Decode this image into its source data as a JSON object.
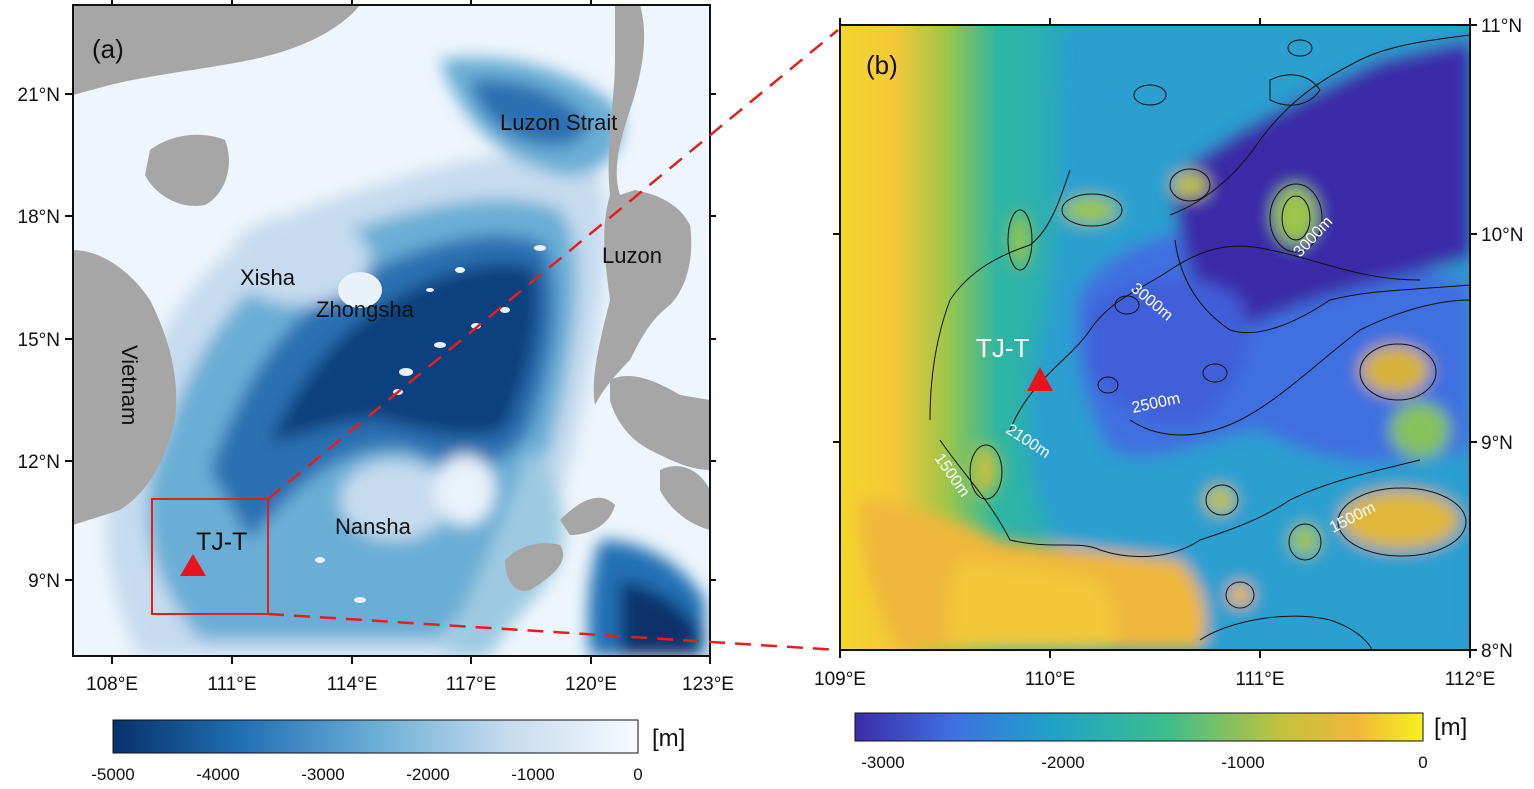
{
  "panel_a": {
    "label": "(a)",
    "lon_ticks": [
      "108°E",
      "111°E",
      "114°E",
      "117°E",
      "120°E",
      "123°E"
    ],
    "lat_ticks": [
      "21°N",
      "18°N",
      "15°N",
      "12°N",
      "9°N"
    ],
    "places": {
      "luzon_strait": "Luzon Strait",
      "luzon": "Luzon",
      "xisha": "Xisha",
      "zhongsha": "Zhongsha",
      "nansha": "Nansha",
      "vietnam": "Vietnam",
      "station": "TJ-T"
    },
    "colorbar": {
      "ticks": [
        "-5000",
        "-4000",
        "-3000",
        "-2000",
        "-1000",
        "0"
      ],
      "unit": "[m]",
      "colors": [
        "#08306b",
        "#2171b5",
        "#6baed6",
        "#c6dbef",
        "#f7fbff"
      ]
    }
  },
  "panel_b": {
    "label": "(b)",
    "lon_ticks": [
      "109°E",
      "110°E",
      "111°E",
      "112°E"
    ],
    "lat_ticks": [
      "11°N",
      "10°N",
      "9°N",
      "8°N"
    ],
    "station": "TJ-T",
    "contour_labels": {
      "c3000_a": "3000m",
      "c3000_b": "3000m",
      "c2500": "2500m",
      "c2100": "2100m",
      "c1500_a": "1500m",
      "c1500_b": "1500m"
    },
    "colorbar": {
      "ticks": [
        "-3000",
        "-2000",
        "-1000",
        "0"
      ],
      "unit": "[m]",
      "colors": [
        "#3b2ca8",
        "#3f6fe0",
        "#1fa3c8",
        "#3cbe8c",
        "#c2c23c",
        "#f0b73a",
        "#f7f020"
      ]
    }
  },
  "colors": {
    "land": "#a6a6a6",
    "marker": "#e8141c",
    "box": "#e02020",
    "dash": "#e02020"
  }
}
